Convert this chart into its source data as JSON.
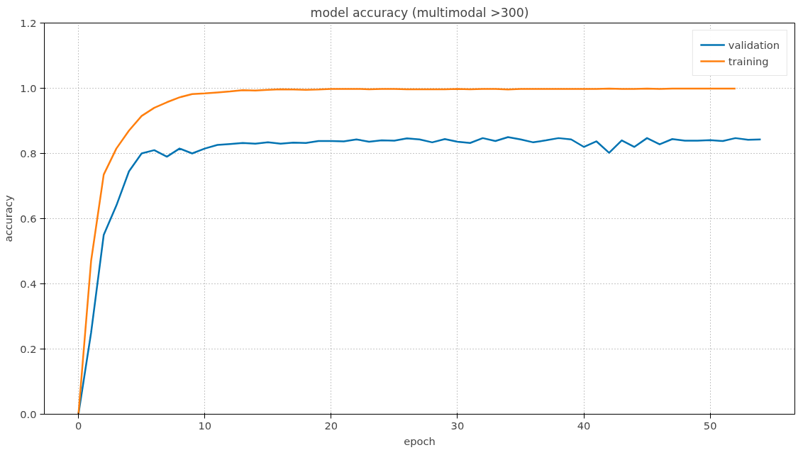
{
  "chart_data": {
    "type": "line",
    "title": "model accuracy (multimodal >300)",
    "xlabel": "epoch",
    "ylabel": "accuracy",
    "xlim": [
      -2.7,
      56.7
    ],
    "xticks": [
      0,
      10,
      20,
      30,
      40,
      50
    ],
    "ylim": [
      0,
      1.2
    ],
    "yticks": [
      {
        "value": 0,
        "label": "0.0"
      },
      0.2,
      0.4,
      0.6,
      0.8,
      {
        "value": 1,
        "label": "1.0"
      },
      1.2
    ],
    "grid": true,
    "legend": "top right",
    "line_style": "solid",
    "marker": "none",
    "series": [
      {
        "name": "validation",
        "color": "#0173b2",
        "x": [
          0,
          1,
          2,
          3,
          4,
          5,
          6,
          7,
          8,
          9,
          10,
          11,
          12,
          13,
          14,
          15,
          16,
          17,
          18,
          19,
          20,
          21,
          22,
          23,
          24,
          25,
          26,
          27,
          28,
          29,
          30,
          31,
          32,
          33,
          34,
          35,
          36,
          37,
          38,
          39,
          40,
          41,
          42,
          43,
          44,
          45,
          46,
          47,
          48,
          49,
          50,
          51,
          52,
          53,
          54
        ],
        "values": [
          0,
          0.25,
          0.55,
          0.64,
          0.745,
          0.8,
          0.81,
          0.79,
          0.815,
          0.8,
          0.815,
          0.826,
          0.829,
          0.832,
          0.83,
          0.834,
          0.83,
          0.833,
          0.832,
          0.838,
          0.838,
          0.837,
          0.843,
          0.836,
          0.84,
          0.839,
          0.846,
          0.843,
          0.834,
          0.844,
          0.836,
          0.832,
          0.847,
          0.838,
          0.85,
          0.843,
          0.834,
          0.84,
          0.847,
          0.843,
          0.82,
          0.837,
          0.802,
          0.84,
          0.82,
          0.847,
          0.828,
          0.844,
          0.839,
          0.839,
          0.841,
          0.838,
          0.847,
          0.842,
          0.843
        ]
      },
      {
        "name": "training",
        "color": "#ff7f0e",
        "x": [
          0,
          1,
          2,
          3,
          4,
          5,
          6,
          7,
          8,
          9,
          10,
          11,
          12,
          13,
          14,
          15,
          16,
          17,
          18,
          19,
          20,
          21,
          22,
          23,
          24,
          25,
          26,
          27,
          28,
          29,
          30,
          31,
          32,
          33,
          34,
          35,
          36,
          37,
          38,
          39,
          40,
          41,
          42,
          43,
          44,
          45,
          46,
          47,
          48,
          49,
          50,
          51,
          52
        ],
        "values": [
          0,
          0.47,
          0.735,
          0.815,
          0.87,
          0.915,
          0.94,
          0.957,
          0.972,
          0.982,
          0.984,
          0.987,
          0.99,
          0.994,
          0.993,
          0.995,
          0.997,
          0.996,
          0.995,
          0.996,
          0.998,
          0.998,
          0.998,
          0.997,
          0.998,
          0.998,
          0.997,
          0.997,
          0.997,
          0.997,
          0.998,
          0.997,
          0.998,
          0.998,
          0.996,
          0.998,
          0.998,
          0.998,
          0.998,
          0.998,
          0.998,
          0.998,
          0.999,
          0.998,
          0.998,
          0.999,
          0.998,
          0.999,
          0.999,
          0.999,
          0.999,
          0.999,
          0.999
        ]
      }
    ]
  }
}
